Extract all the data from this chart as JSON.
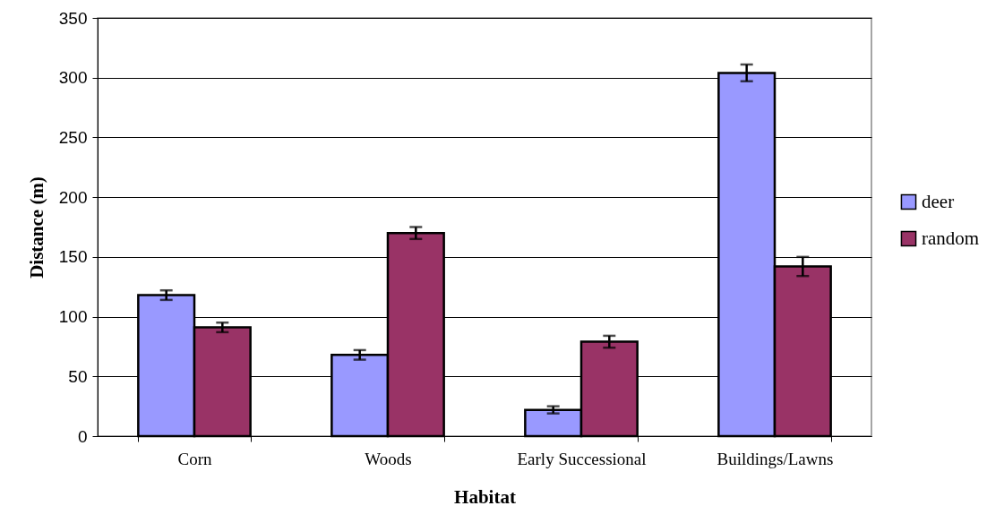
{
  "chart_data": {
    "type": "bar",
    "xlabel": "Habitat",
    "ylabel": "Distance (m)",
    "categories": [
      "Corn",
      "Woods",
      "Early Successional",
      "Buildings/Lawns"
    ],
    "series": [
      {
        "name": "deer",
        "color": "#9999ff",
        "values": [
          118,
          68,
          22,
          304
        ],
        "errors": [
          4,
          4,
          3,
          7
        ]
      },
      {
        "name": "random",
        "color": "#993366",
        "values": [
          91,
          170,
          79,
          142
        ],
        "errors": [
          4,
          5,
          5,
          8
        ]
      }
    ],
    "ylim": [
      0,
      350
    ],
    "yticks": [
      0,
      50,
      100,
      150,
      200,
      250,
      300,
      350
    ],
    "grid": "y",
    "legend": "right"
  }
}
